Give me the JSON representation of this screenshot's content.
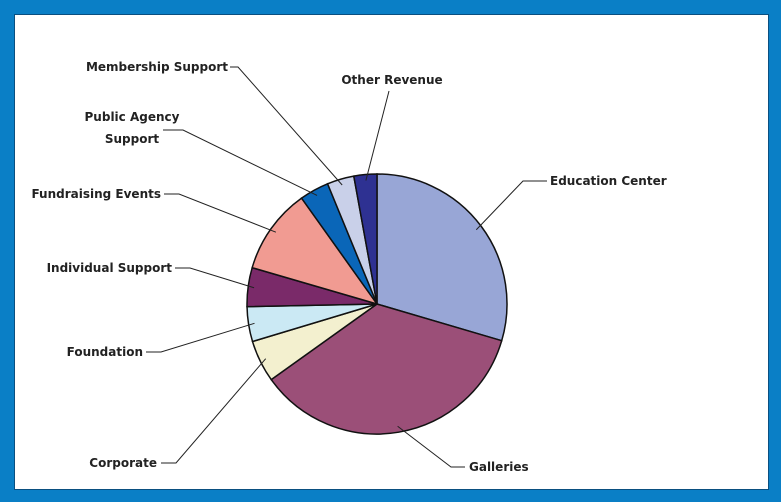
{
  "colors": {
    "background": "#0a7fc6",
    "panel": "#ffffff"
  },
  "chart_data": {
    "type": "pie",
    "title": "",
    "slices": [
      {
        "label": "Education Center",
        "value": 30.0,
        "color": "#98a6d6"
      },
      {
        "label": "Galleries",
        "value": 36.1,
        "color": "#9b4f78"
      },
      {
        "label": "Corporate",
        "value": 5.3,
        "color": "#f3f0cf"
      },
      {
        "label": "Foundation",
        "value": 4.4,
        "color": "#cbe9f4"
      },
      {
        "label": "Individual Support",
        "value": 4.9,
        "color": "#7a2a69"
      },
      {
        "label": "Fundraising Events",
        "value": 10.8,
        "color": "#f19b92"
      },
      {
        "label": "Public Agency Support",
        "value": 3.7,
        "color": "#0a66b8"
      },
      {
        "label": "Membership Support",
        "value": 3.4,
        "color": "#c9d0e9"
      },
      {
        "label": "Other Revenue",
        "value": 2.9,
        "color": "#2e3192"
      }
    ]
  }
}
